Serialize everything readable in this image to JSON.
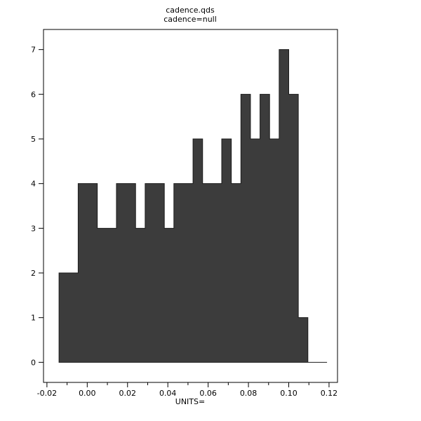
{
  "window": {
    "background": "#ffffff"
  },
  "chart_data": {
    "type": "histogram",
    "title": "cadence.qds",
    "subtitle": "cadence=null",
    "xlabel": "UNITS=",
    "ylabel": "",
    "x_tick_labels": [
      "-0.02",
      "0.00",
      "0.02",
      "0.04",
      "0.06",
      "0.08",
      "0.10",
      "0.12"
    ],
    "x_tick_values": [
      -0.02,
      0.0,
      0.02,
      0.04,
      0.06,
      0.08,
      0.1,
      0.12
    ],
    "x_minor_tick_values": [
      -0.01,
      0.01,
      0.03,
      0.05,
      0.07,
      0.09,
      0.11
    ],
    "y_tick_labels": [
      "0",
      "1",
      "2",
      "3",
      "4",
      "5",
      "6",
      "7"
    ],
    "y_tick_values": [
      0,
      1,
      2,
      3,
      4,
      5,
      6,
      7
    ],
    "xlim": [
      -0.0217,
      0.1242
    ],
    "ylim": [
      -0.45,
      7.45
    ],
    "grid": false,
    "legend": null,
    "bins": {
      "start": -0.014,
      "width": 0.00475,
      "counts": [
        2,
        2,
        4,
        4,
        3,
        3,
        4,
        4,
        3,
        4,
        4,
        3,
        4,
        4,
        5,
        4,
        4,
        5,
        4,
        6,
        5,
        6,
        5,
        7,
        6,
        1,
        0,
        0
      ]
    },
    "bar_fill": "#3c3c3c",
    "bar_stroke": "#1c1c1c",
    "frame_color": "#000000",
    "tick_color": "#000000"
  }
}
